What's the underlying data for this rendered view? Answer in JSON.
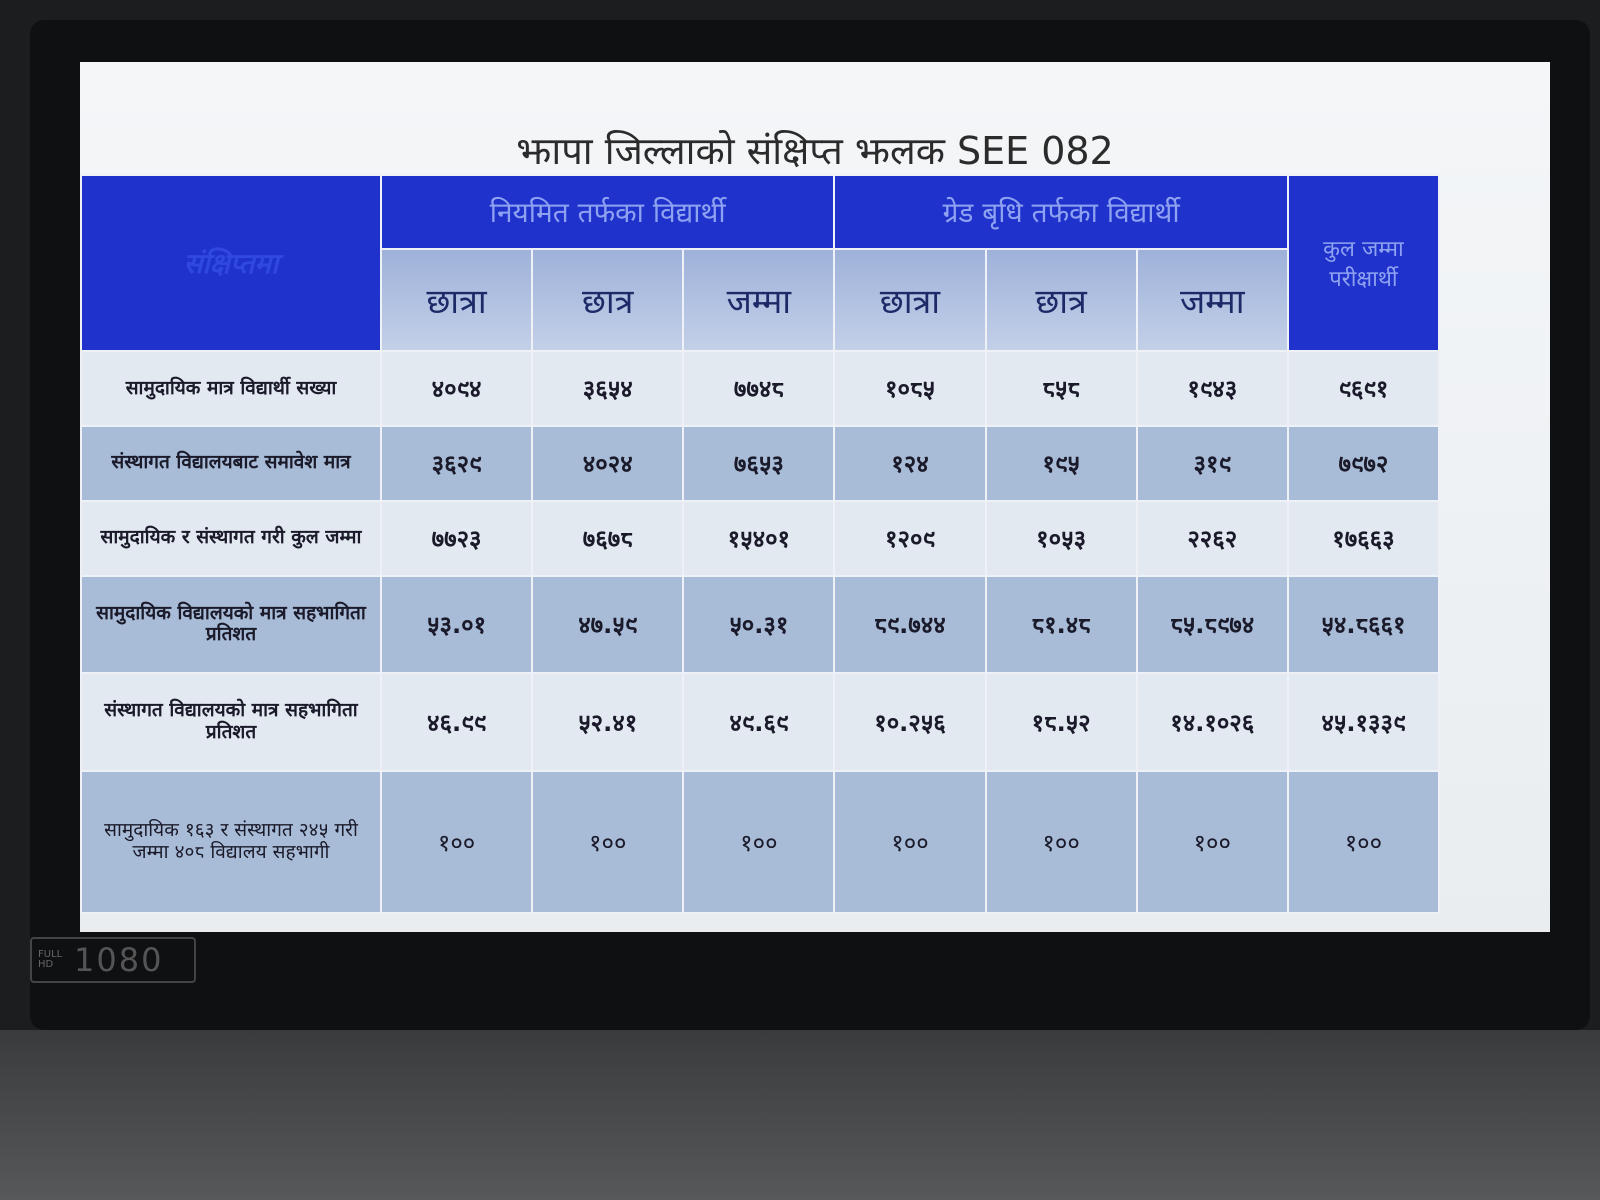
{
  "title": "झापा जिल्लाको संक्षिप्त झलक SEE 082",
  "table": {
    "corner": "संक्षिप्तमा",
    "groups": [
      "नियमित तर्फका विद्यार्थी",
      "ग्रेड बृधि तर्फका विद्यार्थी"
    ],
    "total_header": "कुल जम्मा परीक्षार्थी",
    "subheaders": [
      "छात्रा",
      "छात्र",
      "जम्मा",
      "छात्रा",
      "छात्र",
      "जम्मा"
    ],
    "rows": [
      {
        "label": "सामुदायिक मात्र विद्यार्थी सख्या",
        "cells": [
          "४०९४",
          "३६५४",
          "७७४८",
          "१०८५",
          "८५८",
          "१९४३",
          "९६९१"
        ]
      },
      {
        "label": "संस्थागत विद्यालयबाट समावेश मात्र",
        "cells": [
          "३६२९",
          "४०२४",
          "७६५३",
          "१२४",
          "१९५",
          "३१९",
          "७९७२"
        ]
      },
      {
        "label": "सामुदायिक र संस्थागत गरी कुल जम्मा",
        "cells": [
          "७७२३",
          "७६७८",
          "१५४०१",
          "१२०९",
          "१०५३",
          "२२६२",
          "१७६६३"
        ]
      },
      {
        "label": "सामुदायिक विद्यालयको मात्र सहभागिता प्रतिशत",
        "cells": [
          "५३.०१",
          "४७.५९",
          "५०.३१",
          "८९.७४४",
          "८१.४८",
          "८५.८९७४",
          "५४.८६६१"
        ]
      },
      {
        "label": "संस्थागत विद्यालयको मात्र सहभागिता प्रतिशत",
        "cells": [
          "४६.९९",
          "५२.४१",
          "४९.६९",
          "१०.२५६",
          "१८.५२",
          "१४.१०२६",
          "४५.१३३९"
        ]
      },
      {
        "label": "सामुदायिक १६३ र संस्थागत २४५ गरी जम्मा ४०८ विद्यालय सहभागी",
        "cells": [
          "१००",
          "१००",
          "१००",
          "१००",
          "१००",
          "१००",
          "१००"
        ]
      }
    ]
  },
  "badge": {
    "small": "FULL HD",
    "large": "1080"
  }
}
